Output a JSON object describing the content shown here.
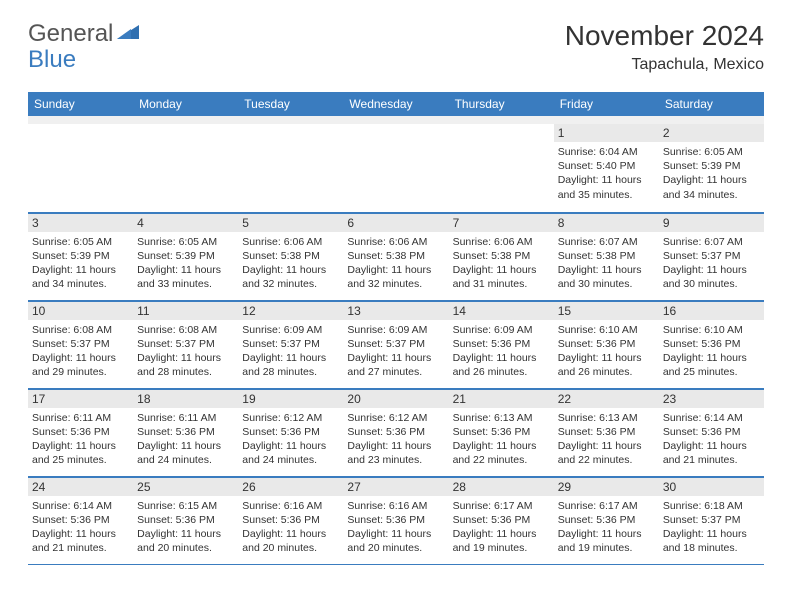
{
  "brand": {
    "word1": "General",
    "word2": "Blue"
  },
  "title": "November 2024",
  "location": "Tapachula, Mexico",
  "colors": {
    "header_bg": "#3a7cbf",
    "header_text": "#ffffff",
    "daynum_bg": "#e9e9e9",
    "rule": "#3a7cbf",
    "text": "#333333",
    "logo_gray": "#555555",
    "logo_blue": "#3a7cbf"
  },
  "day_headers": [
    "Sunday",
    "Monday",
    "Tuesday",
    "Wednesday",
    "Thursday",
    "Friday",
    "Saturday"
  ],
  "weeks": [
    [
      null,
      null,
      null,
      null,
      null,
      {
        "n": "1",
        "sr": "Sunrise: 6:04 AM",
        "ss": "Sunset: 5:40 PM",
        "dl": "Daylight: 11 hours and 35 minutes."
      },
      {
        "n": "2",
        "sr": "Sunrise: 6:05 AM",
        "ss": "Sunset: 5:39 PM",
        "dl": "Daylight: 11 hours and 34 minutes."
      }
    ],
    [
      {
        "n": "3",
        "sr": "Sunrise: 6:05 AM",
        "ss": "Sunset: 5:39 PM",
        "dl": "Daylight: 11 hours and 34 minutes."
      },
      {
        "n": "4",
        "sr": "Sunrise: 6:05 AM",
        "ss": "Sunset: 5:39 PM",
        "dl": "Daylight: 11 hours and 33 minutes."
      },
      {
        "n": "5",
        "sr": "Sunrise: 6:06 AM",
        "ss": "Sunset: 5:38 PM",
        "dl": "Daylight: 11 hours and 32 minutes."
      },
      {
        "n": "6",
        "sr": "Sunrise: 6:06 AM",
        "ss": "Sunset: 5:38 PM",
        "dl": "Daylight: 11 hours and 32 minutes."
      },
      {
        "n": "7",
        "sr": "Sunrise: 6:06 AM",
        "ss": "Sunset: 5:38 PM",
        "dl": "Daylight: 11 hours and 31 minutes."
      },
      {
        "n": "8",
        "sr": "Sunrise: 6:07 AM",
        "ss": "Sunset: 5:38 PM",
        "dl": "Daylight: 11 hours and 30 minutes."
      },
      {
        "n": "9",
        "sr": "Sunrise: 6:07 AM",
        "ss": "Sunset: 5:37 PM",
        "dl": "Daylight: 11 hours and 30 minutes."
      }
    ],
    [
      {
        "n": "10",
        "sr": "Sunrise: 6:08 AM",
        "ss": "Sunset: 5:37 PM",
        "dl": "Daylight: 11 hours and 29 minutes."
      },
      {
        "n": "11",
        "sr": "Sunrise: 6:08 AM",
        "ss": "Sunset: 5:37 PM",
        "dl": "Daylight: 11 hours and 28 minutes."
      },
      {
        "n": "12",
        "sr": "Sunrise: 6:09 AM",
        "ss": "Sunset: 5:37 PM",
        "dl": "Daylight: 11 hours and 28 minutes."
      },
      {
        "n": "13",
        "sr": "Sunrise: 6:09 AM",
        "ss": "Sunset: 5:37 PM",
        "dl": "Daylight: 11 hours and 27 minutes."
      },
      {
        "n": "14",
        "sr": "Sunrise: 6:09 AM",
        "ss": "Sunset: 5:36 PM",
        "dl": "Daylight: 11 hours and 26 minutes."
      },
      {
        "n": "15",
        "sr": "Sunrise: 6:10 AM",
        "ss": "Sunset: 5:36 PM",
        "dl": "Daylight: 11 hours and 26 minutes."
      },
      {
        "n": "16",
        "sr": "Sunrise: 6:10 AM",
        "ss": "Sunset: 5:36 PM",
        "dl": "Daylight: 11 hours and 25 minutes."
      }
    ],
    [
      {
        "n": "17",
        "sr": "Sunrise: 6:11 AM",
        "ss": "Sunset: 5:36 PM",
        "dl": "Daylight: 11 hours and 25 minutes."
      },
      {
        "n": "18",
        "sr": "Sunrise: 6:11 AM",
        "ss": "Sunset: 5:36 PM",
        "dl": "Daylight: 11 hours and 24 minutes."
      },
      {
        "n": "19",
        "sr": "Sunrise: 6:12 AM",
        "ss": "Sunset: 5:36 PM",
        "dl": "Daylight: 11 hours and 24 minutes."
      },
      {
        "n": "20",
        "sr": "Sunrise: 6:12 AM",
        "ss": "Sunset: 5:36 PM",
        "dl": "Daylight: 11 hours and 23 minutes."
      },
      {
        "n": "21",
        "sr": "Sunrise: 6:13 AM",
        "ss": "Sunset: 5:36 PM",
        "dl": "Daylight: 11 hours and 22 minutes."
      },
      {
        "n": "22",
        "sr": "Sunrise: 6:13 AM",
        "ss": "Sunset: 5:36 PM",
        "dl": "Daylight: 11 hours and 22 minutes."
      },
      {
        "n": "23",
        "sr": "Sunrise: 6:14 AM",
        "ss": "Sunset: 5:36 PM",
        "dl": "Daylight: 11 hours and 21 minutes."
      }
    ],
    [
      {
        "n": "24",
        "sr": "Sunrise: 6:14 AM",
        "ss": "Sunset: 5:36 PM",
        "dl": "Daylight: 11 hours and 21 minutes."
      },
      {
        "n": "25",
        "sr": "Sunrise: 6:15 AM",
        "ss": "Sunset: 5:36 PM",
        "dl": "Daylight: 11 hours and 20 minutes."
      },
      {
        "n": "26",
        "sr": "Sunrise: 6:16 AM",
        "ss": "Sunset: 5:36 PM",
        "dl": "Daylight: 11 hours and 20 minutes."
      },
      {
        "n": "27",
        "sr": "Sunrise: 6:16 AM",
        "ss": "Sunset: 5:36 PM",
        "dl": "Daylight: 11 hours and 20 minutes."
      },
      {
        "n": "28",
        "sr": "Sunrise: 6:17 AM",
        "ss": "Sunset: 5:36 PM",
        "dl": "Daylight: 11 hours and 19 minutes."
      },
      {
        "n": "29",
        "sr": "Sunrise: 6:17 AM",
        "ss": "Sunset: 5:36 PM",
        "dl": "Daylight: 11 hours and 19 minutes."
      },
      {
        "n": "30",
        "sr": "Sunrise: 6:18 AM",
        "ss": "Sunset: 5:37 PM",
        "dl": "Daylight: 11 hours and 18 minutes."
      }
    ]
  ]
}
